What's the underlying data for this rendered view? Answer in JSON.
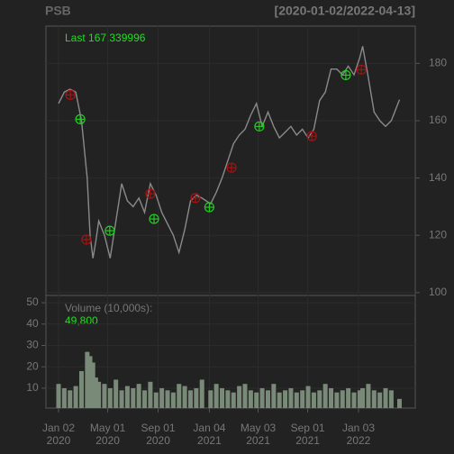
{
  "chart_data": {
    "type": "line",
    "title": "PSB",
    "date_range": "[2020-01-02/2022-04-13]",
    "last_label": "Last 167.339996",
    "xlim": [
      "2020-01-02",
      "2022-04-13"
    ],
    "xticks": [
      {
        "value": "2020-01-02",
        "label": "Jan 02\n2020"
      },
      {
        "value": "2020-05-01",
        "label": "May 01\n2020"
      },
      {
        "value": "2020-09-01",
        "label": "Sep 01\n2020"
      },
      {
        "value": "2021-01-04",
        "label": "Jan 04\n2021"
      },
      {
        "value": "2021-05-03",
        "label": "May 03\n2021"
      },
      {
        "value": "2021-09-01",
        "label": "Sep 01\n2021"
      },
      {
        "value": "2022-01-03",
        "label": "Jan 03\n2022"
      }
    ],
    "x": [
      "2020-01-02",
      "2020-01-16",
      "2020-01-30",
      "2020-02-13",
      "2020-02-27",
      "2020-03-12",
      "2020-03-19",
      "2020-03-26",
      "2020-04-02",
      "2020-04-09",
      "2020-04-23",
      "2020-05-07",
      "2020-05-21",
      "2020-06-04",
      "2020-06-18",
      "2020-07-02",
      "2020-07-16",
      "2020-07-30",
      "2020-08-13",
      "2020-08-27",
      "2020-09-10",
      "2020-09-24",
      "2020-10-08",
      "2020-10-22",
      "2020-11-05",
      "2020-11-19",
      "2020-12-03",
      "2020-12-17",
      "2021-01-07",
      "2021-01-21",
      "2021-02-04",
      "2021-02-18",
      "2021-03-04",
      "2021-03-18",
      "2021-04-01",
      "2021-04-15",
      "2021-04-29",
      "2021-05-13",
      "2021-05-27",
      "2021-06-10",
      "2021-06-24",
      "2021-07-08",
      "2021-07-22",
      "2021-08-05",
      "2021-08-19",
      "2021-09-02",
      "2021-09-16",
      "2021-09-30",
      "2021-10-14",
      "2021-10-28",
      "2021-11-11",
      "2021-11-25",
      "2021-12-09",
      "2021-12-23",
      "2022-01-06",
      "2022-01-13",
      "2022-01-27",
      "2022-02-10",
      "2022-02-24",
      "2022-03-10",
      "2022-03-24",
      "2022-04-13"
    ],
    "price": {
      "color": "#8a8a8a",
      "values": [
        166,
        170,
        171,
        170,
        160,
        140,
        120,
        112,
        118,
        125,
        120,
        112,
        125,
        138,
        132,
        130,
        133,
        128,
        138,
        134,
        128,
        124,
        120,
        114,
        122,
        132,
        134,
        133,
        131,
        135,
        140,
        146,
        152,
        155,
        157,
        162,
        166,
        158,
        163,
        158,
        154,
        156,
        158,
        155,
        157,
        154,
        157,
        167,
        170,
        178,
        178,
        176,
        179,
        176,
        182,
        186,
        175,
        163,
        160,
        158,
        160,
        167.34
      ]
    },
    "ylim": [
      99,
      193
    ],
    "yticks": [
      100,
      120,
      140,
      160,
      180
    ],
    "buy": {
      "color": "#22cc22",
      "x": [
        "2020-02-24",
        "2020-05-06",
        "2020-08-22",
        "2021-01-04",
        "2021-05-06",
        "2021-12-03"
      ],
      "values": [
        160.5,
        121.6,
        125.7,
        129.8,
        158,
        175.9
      ]
    },
    "sell": {
      "color": "#aa1111",
      "x": [
        "2020-01-31",
        "2020-03-10",
        "2020-08-13",
        "2020-12-01",
        "2021-02-27",
        "2021-09-11",
        "2022-01-10"
      ],
      "values": [
        169,
        118.5,
        134.5,
        133,
        143.6,
        154.6,
        177.8
      ]
    },
    "volume": {
      "label": "Volume (10,000s):",
      "last": {
        "value": 4.98,
        "label": "49,800"
      },
      "color": "#7a8a78",
      "values": [
        12,
        10,
        9,
        11,
        18,
        27,
        25,
        22,
        15,
        13,
        12,
        10,
        14,
        9,
        11,
        10,
        12,
        9,
        13,
        8,
        10,
        9,
        8,
        12,
        11,
        9,
        10,
        14,
        9,
        12,
        10,
        9,
        8,
        11,
        12,
        9,
        8,
        10,
        9,
        12,
        8,
        9,
        10,
        8,
        9,
        11,
        8,
        9,
        12,
        10,
        8,
        9,
        10,
        8,
        9,
        10,
        12,
        9,
        8,
        10,
        9,
        4.98
      ]
    },
    "y2lim": [
      0.7,
      53.4
    ],
    "y2ticks": [
      10,
      20,
      30,
      40,
      50
    ]
  }
}
